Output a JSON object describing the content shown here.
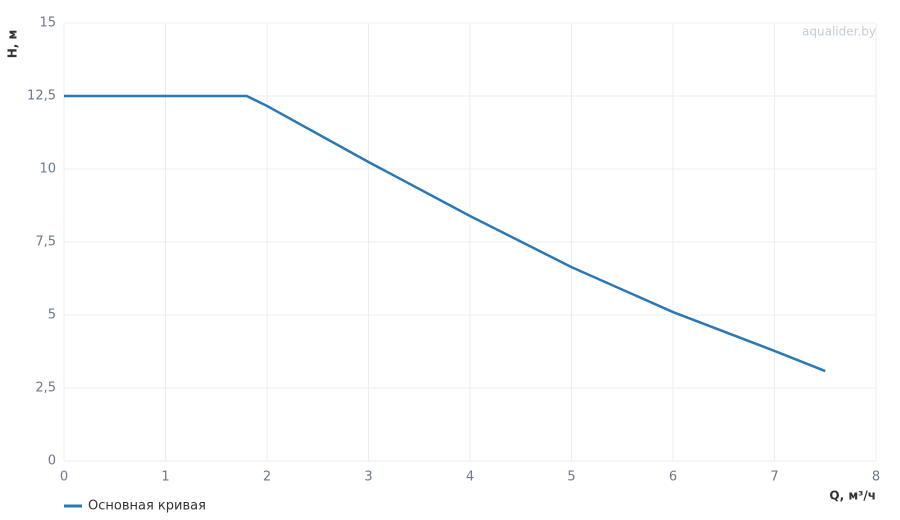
{
  "chart_data": {
    "type": "line",
    "watermark": "aqualider.by",
    "x_label": "Q, м³/ч",
    "y_label": "H, м",
    "x": [
      0,
      1.8,
      2,
      3,
      4,
      5,
      6,
      7,
      7.5
    ],
    "series": [
      {
        "name": "Основная кривая",
        "color": "#2a78b4",
        "values": [
          12.5,
          12.5,
          12.16,
          10.24,
          8.39,
          6.64,
          5.1,
          3.77,
          3.08
        ]
      }
    ],
    "xlim": [
      0,
      8
    ],
    "xticks": [
      0,
      1,
      2,
      3,
      4,
      5,
      6,
      7,
      8
    ],
    "ylim": [
      0,
      15
    ],
    "yticks": [
      0,
      {
        "value": 2.5,
        "label": "2,5"
      },
      5,
      {
        "value": 7.5,
        "label": "7,5"
      },
      10,
      {
        "value": 12.5,
        "label": "12,5"
      },
      15
    ],
    "grid": true,
    "legend": "bottom-left"
  }
}
